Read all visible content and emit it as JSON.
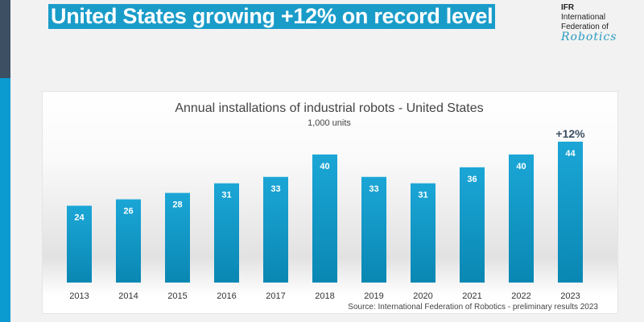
{
  "slide": {
    "title": "United States growing +12% on record level"
  },
  "logo": {
    "line1": "IFR",
    "line2": "International",
    "line3": "Federation of",
    "line4": "Robotics"
  },
  "colors": {
    "bar": "#1aa0d0",
    "bar_dark": "#0a86b4",
    "title_bg": "#1a9cc9"
  },
  "chart_data": {
    "type": "bar",
    "title": "Annual installations of industrial robots - United States",
    "subtitle": "1,000 units",
    "categories": [
      "2013",
      "2014",
      "2015",
      "2016",
      "2017",
      "2018",
      "2019",
      "2020",
      "2021",
      "2022",
      "2023"
    ],
    "values": [
      24,
      26,
      28,
      31,
      33,
      40,
      33,
      31,
      36,
      40,
      44
    ],
    "annotation": {
      "category": "2023",
      "text": "+12%"
    },
    "source": "Source: International Federation of Robotics - preliminary results 2023",
    "ylim": [
      0,
      44
    ],
    "grid": false
  }
}
